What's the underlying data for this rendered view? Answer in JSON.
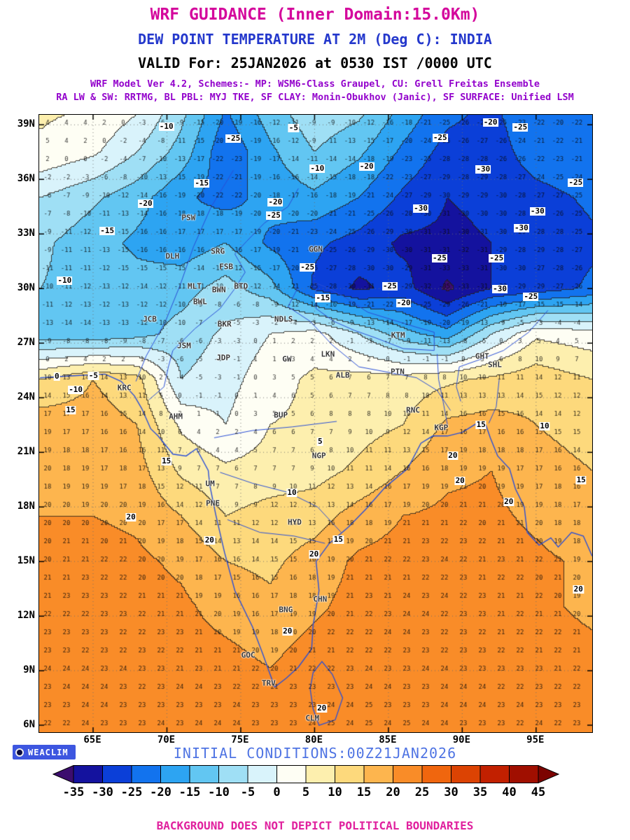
{
  "header": {
    "title1": "WRF GUIDANCE (Inner Domain:15.0Km)",
    "title2": "DEW POINT TEMPERATURE AT 2M (Deg C): INDIA",
    "title3": "VALID For: 25JAN2026 at 0530 IST /0000 UTC",
    "scheme1": "WRF Model Ver 4.2, Schemes:- MP: WSM6-Class Graupel, CU: Grell Freitas Ensemble",
    "scheme2": "RA LW & SW: RRTMG, BL PBL: MYJ TKE, SF CLAY: Monin-Obukhov (Janic), SF SURFACE: Unified LSM"
  },
  "footer": {
    "logo_label": "WEACLIM",
    "initial_conditions": "INITIAL CONDITIONS:00Z21JAN2026",
    "disclaimer": "BACKGROUND DOES NOT DEPICT POLITICAL BOUNDARIES"
  },
  "chart_data": {
    "type": "heatmap",
    "title": "DEW POINT TEMPERATURE AT 2M (Deg C): INDIA",
    "units": "Deg C",
    "valid": "25JAN2026 at 0530 IST /0000 UTC",
    "init": "00Z21JAN2026",
    "lon_range": [
      61.35,
      98.8
    ],
    "lat_range": [
      5.62,
      39.55
    ],
    "axis": {
      "lat_ticks": [
        "39N",
        "36N",
        "33N",
        "30N",
        "27N",
        "24N",
        "21N",
        "18N",
        "15N",
        "12N",
        "9N",
        "6N"
      ],
      "lon_ticks": [
        "65E",
        "70E",
        "75E",
        "80E",
        "85E",
        "90E",
        "95E"
      ]
    },
    "grid_lons": [
      61.5,
      65,
      68,
      71,
      74,
      77,
      80,
      83,
      86,
      89,
      92,
      95,
      98.8
    ],
    "grid_lats": [
      40,
      37.5,
      35,
      32.5,
      30,
      27.5,
      25,
      22.5,
      20,
      17.5,
      15,
      12.5,
      10,
      7.5,
      5.6
    ],
    "values": [
      [
        6,
        5,
        1,
        -8,
        -20,
        -12,
        -6,
        -8,
        -16,
        -23,
        -26,
        -20,
        -22
      ],
      [
        4,
        1,
        -5,
        -12,
        -24,
        -16,
        -10,
        -14,
        -21,
        -27,
        -28,
        -22,
        -20
      ],
      [
        -5,
        -9,
        -13,
        -19,
        -22,
        -18,
        -16,
        -20,
        -26,
        -30,
        -29,
        -27,
        -24
      ],
      [
        -9,
        -13,
        -16,
        -18,
        -15,
        -21,
        -24,
        -27,
        -31,
        -31,
        -30,
        -29,
        -26
      ],
      [
        -10,
        -12,
        -13,
        -12,
        -8,
        -13,
        -26,
        -31,
        -28,
        -36,
        -30,
        -28,
        -24
      ],
      [
        -13,
        -14,
        -12,
        -8,
        -4,
        0,
        2,
        -5,
        -13,
        -18,
        -5,
        4,
        2
      ],
      [
        10,
        15,
        12,
        -5,
        -2,
        3,
        6,
        7,
        7,
        9,
        11,
        13,
        10
      ],
      [
        18,
        17,
        15,
        4,
        0,
        5,
        6,
        8,
        10,
        16,
        17,
        15,
        13
      ],
      [
        19,
        18,
        17,
        9,
        6,
        7,
        8,
        11,
        15,
        19,
        20,
        17,
        15
      ],
      [
        20,
        20,
        19,
        15,
        10,
        12,
        13,
        17,
        20,
        21,
        21,
        19,
        16
      ],
      [
        21,
        22,
        21,
        19,
        15,
        14,
        17,
        21,
        22,
        23,
        22,
        21,
        19
      ],
      [
        22,
        23,
        22,
        21,
        18,
        16,
        19,
        22,
        23,
        23,
        22,
        21,
        19
      ],
      [
        23,
        23,
        23,
        22,
        21,
        19,
        22,
        23,
        23,
        23,
        23,
        22,
        21
      ],
      [
        23,
        24,
        23,
        23,
        23,
        22,
        23,
        24,
        23,
        24,
        23,
        23,
        22
      ],
      [
        23,
        23,
        24,
        24,
        24,
        23,
        25,
        24,
        24,
        24,
        23,
        23,
        23
      ]
    ],
    "colorbar": {
      "levels": [
        "-35",
        "-30",
        "-25",
        "-20",
        "-15",
        "-10",
        "-5",
        "0",
        "5",
        "10",
        "15",
        "20",
        "25",
        "30",
        "35",
        "40",
        "45"
      ],
      "colors": [
        "#3c0d6e",
        "#14129e",
        "#0b3fd8",
        "#1273ee",
        "#2da4f2",
        "#62c6f2",
        "#9fdff5",
        "#d9f3fb",
        "#fefef4",
        "#fdefae",
        "#fdd97c",
        "#fdb54e",
        "#f98c28",
        "#f0660e",
        "#dc4303",
        "#c22000",
        "#a00f00",
        "#7c0300"
      ]
    },
    "contour_labels": [
      {
        "t": "-10",
        "x": 23.0,
        "y": 1.9
      },
      {
        "t": "-25",
        "x": 35.1,
        "y": 3.9
      },
      {
        "t": "-5",
        "x": 46.0,
        "y": 2.2
      },
      {
        "t": "-20",
        "x": 81.6,
        "y": 1.2
      },
      {
        "t": "-25",
        "x": 72.5,
        "y": 3.7
      },
      {
        "t": "-25",
        "x": 87.0,
        "y": 2.0
      },
      {
        "t": "-10",
        "x": 50.3,
        "y": 8.7
      },
      {
        "t": "-20",
        "x": 59.2,
        "y": 8.4
      },
      {
        "t": "-30",
        "x": 80.3,
        "y": 8.8
      },
      {
        "t": "-15",
        "x": 29.4,
        "y": 11.1
      },
      {
        "t": "-25",
        "x": 97.0,
        "y": 11.0
      },
      {
        "t": "-20",
        "x": 19.2,
        "y": 14.4
      },
      {
        "t": "-20",
        "x": 42.7,
        "y": 14.2
      },
      {
        "t": "-25",
        "x": 42.4,
        "y": 16.3
      },
      {
        "t": "-30",
        "x": 69.0,
        "y": 15.2
      },
      {
        "t": "-30",
        "x": 90.1,
        "y": 15.6
      },
      {
        "t": "-30",
        "x": 87.2,
        "y": 18.4
      },
      {
        "t": "-15",
        "x": 12.3,
        "y": 18.8
      },
      {
        "t": "-25",
        "x": 72.4,
        "y": 23.2
      },
      {
        "t": "-25",
        "x": 82.7,
        "y": 23.2
      },
      {
        "t": "-25",
        "x": 48.5,
        "y": 24.7
      },
      {
        "t": "-10",
        "x": 4.6,
        "y": 26.9
      },
      {
        "t": "-15",
        "x": 51.3,
        "y": 29.7
      },
      {
        "t": "-25",
        "x": 63.4,
        "y": 27.8
      },
      {
        "t": "-30",
        "x": 83.3,
        "y": 28.2
      },
      {
        "t": "-25",
        "x": 88.9,
        "y": 29.5
      },
      {
        "t": "-20",
        "x": 65.9,
        "y": 30.5
      },
      {
        "t": "0",
        "x": 3.2,
        "y": 42.4
      },
      {
        "t": "-5",
        "x": 9.8,
        "y": 42.3
      },
      {
        "t": "-10",
        "x": 6.6,
        "y": 44.6
      },
      {
        "t": "15",
        "x": 5.7,
        "y": 47.8
      },
      {
        "t": "15",
        "x": 79.9,
        "y": 50.2
      },
      {
        "t": "10",
        "x": 91.4,
        "y": 50.5
      },
      {
        "t": "5",
        "x": 50.8,
        "y": 53.0
      },
      {
        "t": "15",
        "x": 23.0,
        "y": 56.1
      },
      {
        "t": "20",
        "x": 74.8,
        "y": 55.2
      },
      {
        "t": "20",
        "x": 76.1,
        "y": 59.3
      },
      {
        "t": "15",
        "x": 98.0,
        "y": 59.2
      },
      {
        "t": "10",
        "x": 45.7,
        "y": 61.2
      },
      {
        "t": "20",
        "x": 84.9,
        "y": 62.7
      },
      {
        "t": "20",
        "x": 16.6,
        "y": 65.2
      },
      {
        "t": "20",
        "x": 30.8,
        "y": 68.9
      },
      {
        "t": "15",
        "x": 54.1,
        "y": 68.8
      },
      {
        "t": "20",
        "x": 49.7,
        "y": 71.2
      },
      {
        "t": "20",
        "x": 97.5,
        "y": 76.9
      },
      {
        "t": "20",
        "x": 44.9,
        "y": 83.7
      },
      {
        "t": "20",
        "x": 51.1,
        "y": 96.1
      }
    ],
    "stations": [
      {
        "n": "PSW",
        "x": 27.0,
        "y": 16.7
      },
      {
        "n": "SRG",
        "x": 32.3,
        "y": 22.1
      },
      {
        "n": "GGN",
        "x": 50.0,
        "y": 21.8
      },
      {
        "n": "DLH",
        "x": 24.1,
        "y": 22.9
      },
      {
        "n": "FSB",
        "x": 33.8,
        "y": 24.6
      },
      {
        "n": "MLT",
        "x": 28.1,
        "y": 27.8
      },
      {
        "n": "BWN",
        "x": 32.5,
        "y": 28.3
      },
      {
        "n": "BTD",
        "x": 36.5,
        "y": 27.8
      },
      {
        "n": "BWL",
        "x": 29.1,
        "y": 30.3
      },
      {
        "n": "JCB",
        "x": 20.0,
        "y": 33.1
      },
      {
        "n": "BKR",
        "x": 33.5,
        "y": 33.9
      },
      {
        "n": "NDLS",
        "x": 44.2,
        "y": 33.1
      },
      {
        "n": "KTM",
        "x": 64.9,
        "y": 35.7
      },
      {
        "n": "JSM",
        "x": 26.2,
        "y": 37.4
      },
      {
        "n": "JDP",
        "x": 33.3,
        "y": 39.3
      },
      {
        "n": "GW",
        "x": 44.8,
        "y": 39.6
      },
      {
        "n": "LKN",
        "x": 52.2,
        "y": 38.8
      },
      {
        "n": "GHT",
        "x": 80.1,
        "y": 39.1
      },
      {
        "n": "SHL",
        "x": 82.4,
        "y": 40.5
      },
      {
        "n": "ALB",
        "x": 54.9,
        "y": 42.2
      },
      {
        "n": "PTN",
        "x": 64.8,
        "y": 41.6
      },
      {
        "n": "KRC",
        "x": 15.4,
        "y": 44.2
      },
      {
        "n": "AHM",
        "x": 24.7,
        "y": 48.9
      },
      {
        "n": "BUP",
        "x": 43.7,
        "y": 48.6
      },
      {
        "n": "RNC",
        "x": 67.6,
        "y": 47.8
      },
      {
        "n": "KGP",
        "x": 72.7,
        "y": 50.7
      },
      {
        "n": "NGP",
        "x": 50.6,
        "y": 55.2
      },
      {
        "n": "UM",
        "x": 30.9,
        "y": 59.8
      },
      {
        "n": "PNE",
        "x": 31.4,
        "y": 62.9
      },
      {
        "n": "HYD",
        "x": 46.2,
        "y": 66.0
      },
      {
        "n": "CHN",
        "x": 50.8,
        "y": 78.5
      },
      {
        "n": "BNG",
        "x": 44.6,
        "y": 80.2
      },
      {
        "n": "GOC",
        "x": 37.8,
        "y": 87.5
      },
      {
        "n": "TRV",
        "x": 41.5,
        "y": 92.1
      },
      {
        "n": "CLM",
        "x": 49.4,
        "y": 97.7
      }
    ]
  }
}
